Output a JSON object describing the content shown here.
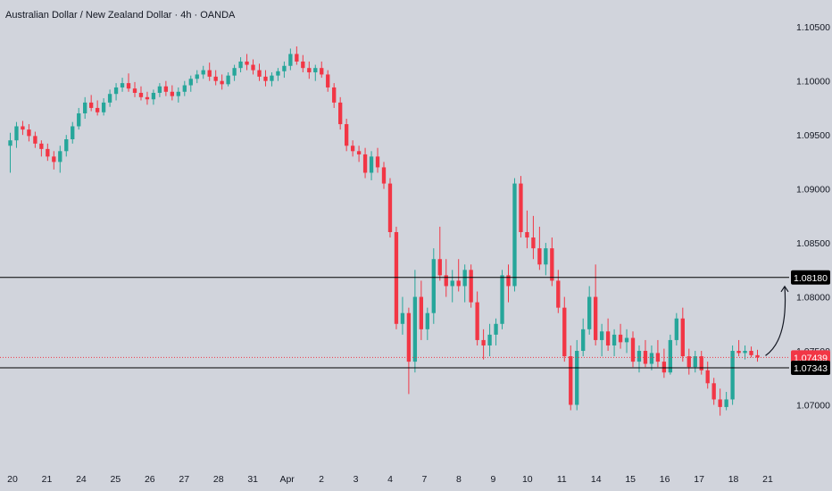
{
  "title": "Australian Dollar / New Zealand Dollar · 4h · OANDA",
  "colors": {
    "background": "#d1d4dc",
    "up": "#26a69a",
    "down": "#f23645",
    "text": "#131722",
    "level_line": "#000000",
    "price_line": "#f23645",
    "arrow": "#131722"
  },
  "chart_data": {
    "type": "candlestick",
    "symbol": "AUDNZD",
    "timeframe": "4h",
    "source": "OANDA",
    "x_tick_labels": [
      "20",
      "21",
      "24",
      "25",
      "26",
      "27",
      "28",
      "31",
      "Apr",
      "2",
      "3",
      "4",
      "7",
      "8",
      "9",
      "10",
      "11",
      "14",
      "15",
      "16",
      "17",
      "18",
      "21"
    ],
    "y_tick_labels": [
      "1.10500",
      "1.10000",
      "1.09500",
      "1.09000",
      "1.08500",
      "1.08000",
      "1.07500",
      "1.07000"
    ],
    "ylim": [
      1.0645,
      1.1075
    ],
    "grid": false,
    "horizontal_levels": [
      {
        "label": "1.08180",
        "value": 1.0818
      },
      {
        "label": "1.07343",
        "value": 1.07343
      }
    ],
    "last_price": {
      "label": "1.07439",
      "value": 1.07439
    },
    "annotation": "curved arrow pointing up from last candle toward 1.08180",
    "candles": [
      [
        1.094,
        1.0952,
        1.0915,
        1.0945
      ],
      [
        1.0945,
        1.0962,
        1.0938,
        1.0958
      ],
      [
        1.0958,
        1.0963,
        1.095,
        1.0955
      ],
      [
        1.0955,
        1.096,
        1.0944,
        1.0949
      ],
      [
        1.0949,
        1.0953,
        1.0938,
        1.0942
      ],
      [
        1.0942,
        1.0945,
        1.093,
        1.0937
      ],
      [
        1.0937,
        1.0942,
        1.0926,
        1.093
      ],
      [
        1.093,
        1.0935,
        1.0918,
        1.0925
      ],
      [
        1.0925,
        1.094,
        1.0915,
        1.0935
      ],
      [
        1.0935,
        1.095,
        1.093,
        1.0946
      ],
      [
        1.0946,
        1.0962,
        1.0942,
        1.0958
      ],
      [
        1.0958,
        1.0975,
        1.0955,
        1.097
      ],
      [
        1.097,
        1.0985,
        1.0965,
        1.098
      ],
      [
        1.098,
        1.0987,
        1.0972,
        1.0975
      ],
      [
        1.0975,
        1.0982,
        1.0968,
        1.0971
      ],
      [
        1.0971,
        1.0984,
        1.0968,
        1.098
      ],
      [
        1.098,
        1.0992,
        1.0976,
        1.0988
      ],
      [
        1.0988,
        1.0998,
        1.0982,
        1.0994
      ],
      [
        1.0994,
        1.1003,
        1.099,
        1.0998
      ],
      [
        1.0998,
        1.1007,
        1.099,
        1.0993
      ],
      [
        1.0993,
        1.0999,
        1.0985,
        1.0989
      ],
      [
        1.0989,
        1.0995,
        1.0982,
        1.0985
      ],
      [
        1.0985,
        1.099,
        1.0978,
        1.0983
      ],
      [
        1.0983,
        1.0992,
        1.0978,
        1.0989
      ],
      [
        1.0989,
        1.0998,
        1.0985,
        1.0995
      ],
      [
        1.0995,
        1.1,
        1.0986,
        1.099
      ],
      [
        1.099,
        1.0996,
        1.0982,
        1.0986
      ],
      [
        1.0986,
        1.0994,
        1.098,
        1.099
      ],
      [
        1.099,
        1.1,
        1.0986,
        1.0996
      ],
      [
        1.0996,
        1.1005,
        1.099,
        1.1002
      ],
      [
        1.1002,
        1.101,
        1.0998,
        1.1006
      ],
      [
        1.1006,
        1.1014,
        1.1002,
        1.101
      ],
      [
        1.101,
        1.1017,
        1.1,
        1.1004
      ],
      [
        1.1004,
        1.101,
        1.0996,
        1.1
      ],
      [
        1.1,
        1.1006,
        1.0992,
        1.0997
      ],
      [
        1.0997,
        1.1008,
        1.0995,
        1.1005
      ],
      [
        1.1005,
        1.1015,
        1.1,
        1.1012
      ],
      [
        1.1012,
        1.1022,
        1.1008,
        1.1018
      ],
      [
        1.1018,
        1.1025,
        1.101,
        1.1015
      ],
      [
        1.1015,
        1.102,
        1.1006,
        1.101
      ],
      [
        1.101,
        1.1016,
        1.1,
        1.1004
      ],
      [
        1.1004,
        1.101,
        1.0995,
        1.1
      ],
      [
        1.1,
        1.1008,
        1.0995,
        1.1005
      ],
      [
        1.1005,
        1.1012,
        1.1,
        1.1009
      ],
      [
        1.1009,
        1.1018,
        1.1003,
        1.1014
      ],
      [
        1.1014,
        1.103,
        1.101,
        1.1025
      ],
      [
        1.1025,
        1.1032,
        1.1015,
        1.1018
      ],
      [
        1.1018,
        1.1024,
        1.1008,
        1.1012
      ],
      [
        1.1012,
        1.1018,
        1.1002,
        1.1008
      ],
      [
        1.1008,
        1.1015,
        1.1,
        1.1012
      ],
      [
        1.1012,
        1.1018,
        1.1003,
        1.1006
      ],
      [
        1.1006,
        1.101,
        1.099,
        1.0994
      ],
      [
        1.0994,
        1.0998,
        1.0975,
        1.098
      ],
      [
        1.098,
        1.0985,
        1.0955,
        1.096
      ],
      [
        1.096,
        1.0965,
        1.0935,
        1.094
      ],
      [
        1.094,
        1.0945,
        1.093,
        1.0935
      ],
      [
        1.0935,
        1.094,
        1.0925,
        1.0932
      ],
      [
        1.0932,
        1.0938,
        1.091,
        1.0915
      ],
      [
        1.0915,
        1.0935,
        1.0908,
        1.093
      ],
      [
        1.093,
        1.0938,
        1.0915,
        1.092
      ],
      [
        1.092,
        1.0925,
        1.09,
        1.0905
      ],
      [
        1.0905,
        1.091,
        1.0855,
        1.086
      ],
      [
        1.086,
        1.0865,
        1.077,
        1.0775
      ],
      [
        1.0775,
        1.08,
        1.0765,
        1.0785
      ],
      [
        1.0785,
        1.079,
        1.071,
        1.074
      ],
      [
        1.074,
        1.0825,
        1.073,
        1.08
      ],
      [
        1.08,
        1.0815,
        1.076,
        1.077
      ],
      [
        1.077,
        1.079,
        1.076,
        1.0785
      ],
      [
        1.0785,
        1.0845,
        1.0775,
        1.0835
      ],
      [
        1.0835,
        1.0865,
        1.0815,
        1.082
      ],
      [
        1.082,
        1.0835,
        1.08,
        1.081
      ],
      [
        1.081,
        1.0825,
        1.0795,
        1.0815
      ],
      [
        1.0815,
        1.0835,
        1.0805,
        1.081
      ],
      [
        1.081,
        1.083,
        1.0795,
        1.0825
      ],
      [
        1.0825,
        1.083,
        1.079,
        1.0795
      ],
      [
        1.0795,
        1.0805,
        1.0755,
        1.076
      ],
      [
        1.076,
        1.077,
        1.0742,
        1.0755
      ],
      [
        1.0755,
        1.0775,
        1.0745,
        1.0765
      ],
      [
        1.0765,
        1.078,
        1.0755,
        1.0775
      ],
      [
        1.0775,
        1.0825,
        1.077,
        1.082
      ],
      [
        1.082,
        1.083,
        1.0795,
        1.081
      ],
      [
        1.081,
        1.091,
        1.0805,
        1.0905
      ],
      [
        1.0905,
        1.0912,
        1.0855,
        1.086
      ],
      [
        1.086,
        1.088,
        1.0845,
        1.0855
      ],
      [
        1.0855,
        1.0875,
        1.0835,
        1.0845
      ],
      [
        1.0845,
        1.0865,
        1.0825,
        1.083
      ],
      [
        1.083,
        1.085,
        1.082,
        1.0845
      ],
      [
        1.0845,
        1.0855,
        1.081,
        1.0815
      ],
      [
        1.0815,
        1.0825,
        1.0785,
        1.079
      ],
      [
        1.079,
        1.08,
        1.074,
        1.0745
      ],
      [
        1.0745,
        1.0755,
        1.0695,
        1.07
      ],
      [
        1.07,
        1.076,
        1.0695,
        1.075
      ],
      [
        1.075,
        1.078,
        1.0745,
        1.077
      ],
      [
        1.077,
        1.081,
        1.0765,
        1.08
      ],
      [
        1.08,
        1.083,
        1.0755,
        1.076
      ],
      [
        1.076,
        1.0775,
        1.0745,
        1.0768
      ],
      [
        1.0768,
        1.078,
        1.075,
        1.0755
      ],
      [
        1.0755,
        1.077,
        1.0745,
        1.0765
      ],
      [
        1.0765,
        1.0775,
        1.0752,
        1.0758
      ],
      [
        1.0758,
        1.077,
        1.0748,
        1.0762
      ],
      [
        1.0762,
        1.0768,
        1.0735,
        1.074
      ],
      [
        1.074,
        1.0755,
        1.073,
        1.075
      ],
      [
        1.075,
        1.076,
        1.0735,
        1.0738
      ],
      [
        1.0738,
        1.0755,
        1.0732,
        1.0748
      ],
      [
        1.0748,
        1.076,
        1.0735,
        1.074
      ],
      [
        1.074,
        1.0752,
        1.0725,
        1.073
      ],
      [
        1.073,
        1.0765,
        1.0728,
        1.076
      ],
      [
        1.076,
        1.0785,
        1.0755,
        1.078
      ],
      [
        1.078,
        1.079,
        1.074,
        1.0745
      ],
      [
        1.0745,
        1.0752,
        1.0728,
        1.0735
      ],
      [
        1.0735,
        1.075,
        1.073,
        1.0745
      ],
      [
        1.0745,
        1.075,
        1.0728,
        1.0732
      ],
      [
        1.0732,
        1.074,
        1.0715,
        1.072
      ],
      [
        1.072,
        1.0725,
        1.07,
        1.0705
      ],
      [
        1.0705,
        1.0715,
        1.069,
        1.0698
      ],
      [
        1.0698,
        1.0712,
        1.0695,
        1.0705
      ],
      [
        1.0705,
        1.0755,
        1.07,
        1.075
      ],
      [
        1.075,
        1.076,
        1.0745,
        1.0748
      ],
      [
        1.0748,
        1.0755,
        1.0742,
        1.075
      ],
      [
        1.075,
        1.0754,
        1.0744,
        1.0746
      ],
      [
        1.0746,
        1.0751,
        1.074,
        1.07439
      ]
    ]
  }
}
